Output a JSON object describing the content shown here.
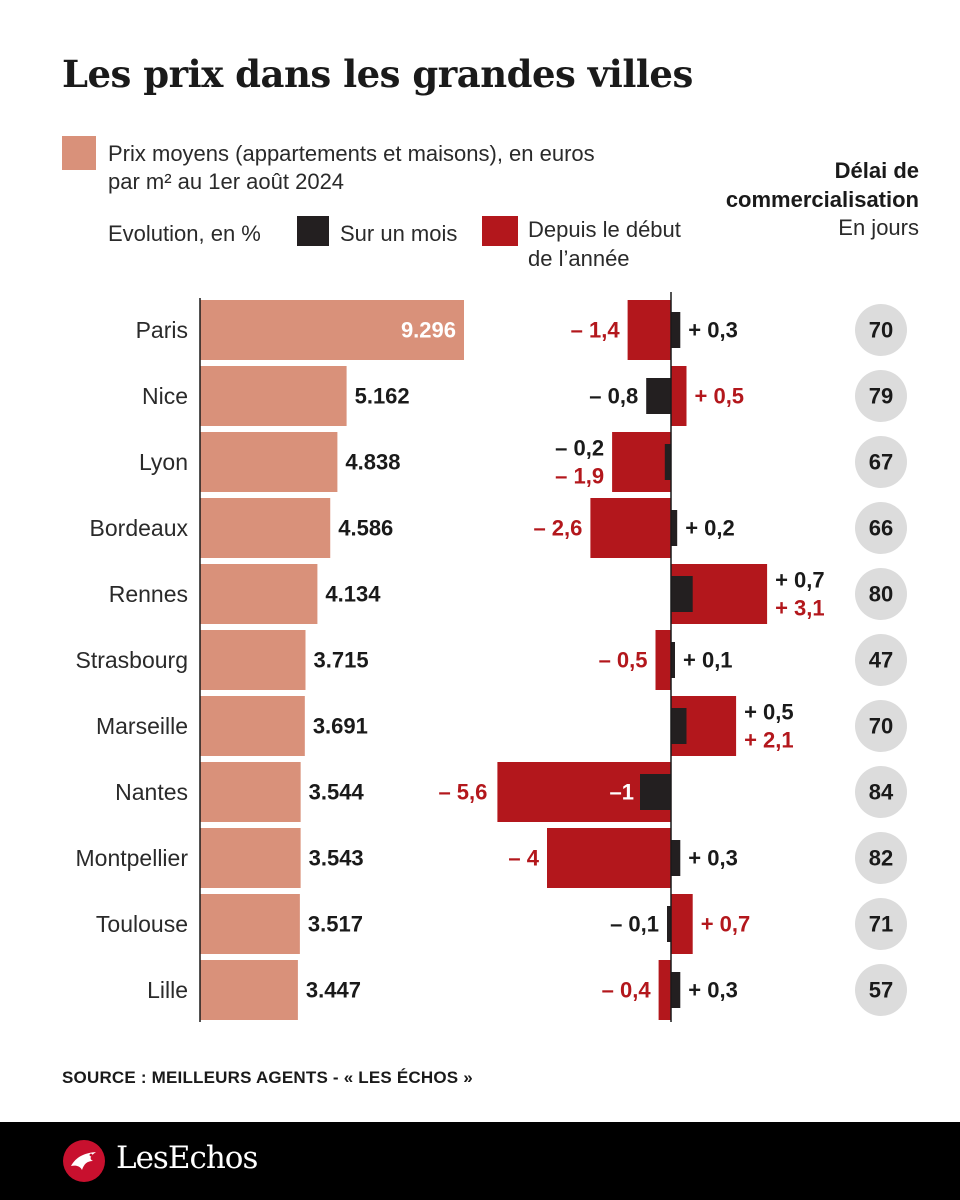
{
  "title": "Les prix dans les grandes villes",
  "legend": {
    "price_line1": "Prix moyens (appartements et maisons), en euros",
    "price_line2": "par m² au 1er août 2024",
    "evolution_label": "Evolution, en %",
    "month_label": "Sur un mois",
    "year_label_line1": "Depuis le début",
    "year_label_line2": "de l’année"
  },
  "delai": {
    "title_line1": "Délai de",
    "title_line2": "commercialisation",
    "unit": "En jours"
  },
  "colors": {
    "price": "#d9917a",
    "month": "#231f20",
    "year": "#b3171c",
    "circle": "#dcdcdc"
  },
  "chart_data": {
    "type": "bar",
    "categories": [
      "Paris",
      "Nice",
      "Lyon",
      "Bordeaux",
      "Rennes",
      "Strasbourg",
      "Marseille",
      "Nantes",
      "Montpellier",
      "Toulouse",
      "Lille"
    ],
    "series": [
      {
        "name": "Prix moyens (appartements et maisons), en euros par m² au 1er août 2024",
        "values": [
          9296,
          5162,
          4838,
          4586,
          4134,
          3715,
          3691,
          3544,
          3543,
          3517,
          3447
        ],
        "labels": [
          "9.296",
          "5.162",
          "4.838",
          "4.586",
          "4.134",
          "3.715",
          "3.691",
          "3.544",
          "3.543",
          "3.517",
          "3.447"
        ]
      },
      {
        "name": "Sur un mois",
        "values": [
          0.3,
          -0.8,
          -0.2,
          0.2,
          0.7,
          0.1,
          0.5,
          -1,
          0.3,
          -0.1,
          0.3
        ],
        "labels": [
          "+ 0,3",
          "– 0,8",
          "– 0,2",
          "+ 0,2",
          "+ 0,7",
          "+ 0,1",
          "+ 0,5",
          "–1",
          "+ 0,3",
          "– 0,1",
          "+ 0,3"
        ]
      },
      {
        "name": "Depuis le début de l’année",
        "values": [
          -1.4,
          0.5,
          -1.9,
          -2.6,
          3.1,
          -0.5,
          2.1,
          -5.6,
          -4,
          0.7,
          -0.4
        ],
        "labels": [
          "– 1,4",
          "+ 0,5",
          "– 1,9",
          "– 2,6",
          "+ 3,1",
          "– 0,5",
          "+ 2,1",
          "– 5,6",
          "– 4",
          "+ 0,7",
          "– 0,4"
        ]
      },
      {
        "name": "Délai de commercialisation",
        "values": [
          70,
          79,
          67,
          66,
          80,
          47,
          70,
          84,
          82,
          71,
          57
        ],
        "labels": [
          "70",
          "79",
          "67",
          "66",
          "80",
          "47",
          "70",
          "84",
          "82",
          "71",
          "57"
        ]
      }
    ]
  },
  "source": "SOURCE : MEILLEURS AGENTS - « LES ÉCHOS »",
  "brand": "LesEchos"
}
